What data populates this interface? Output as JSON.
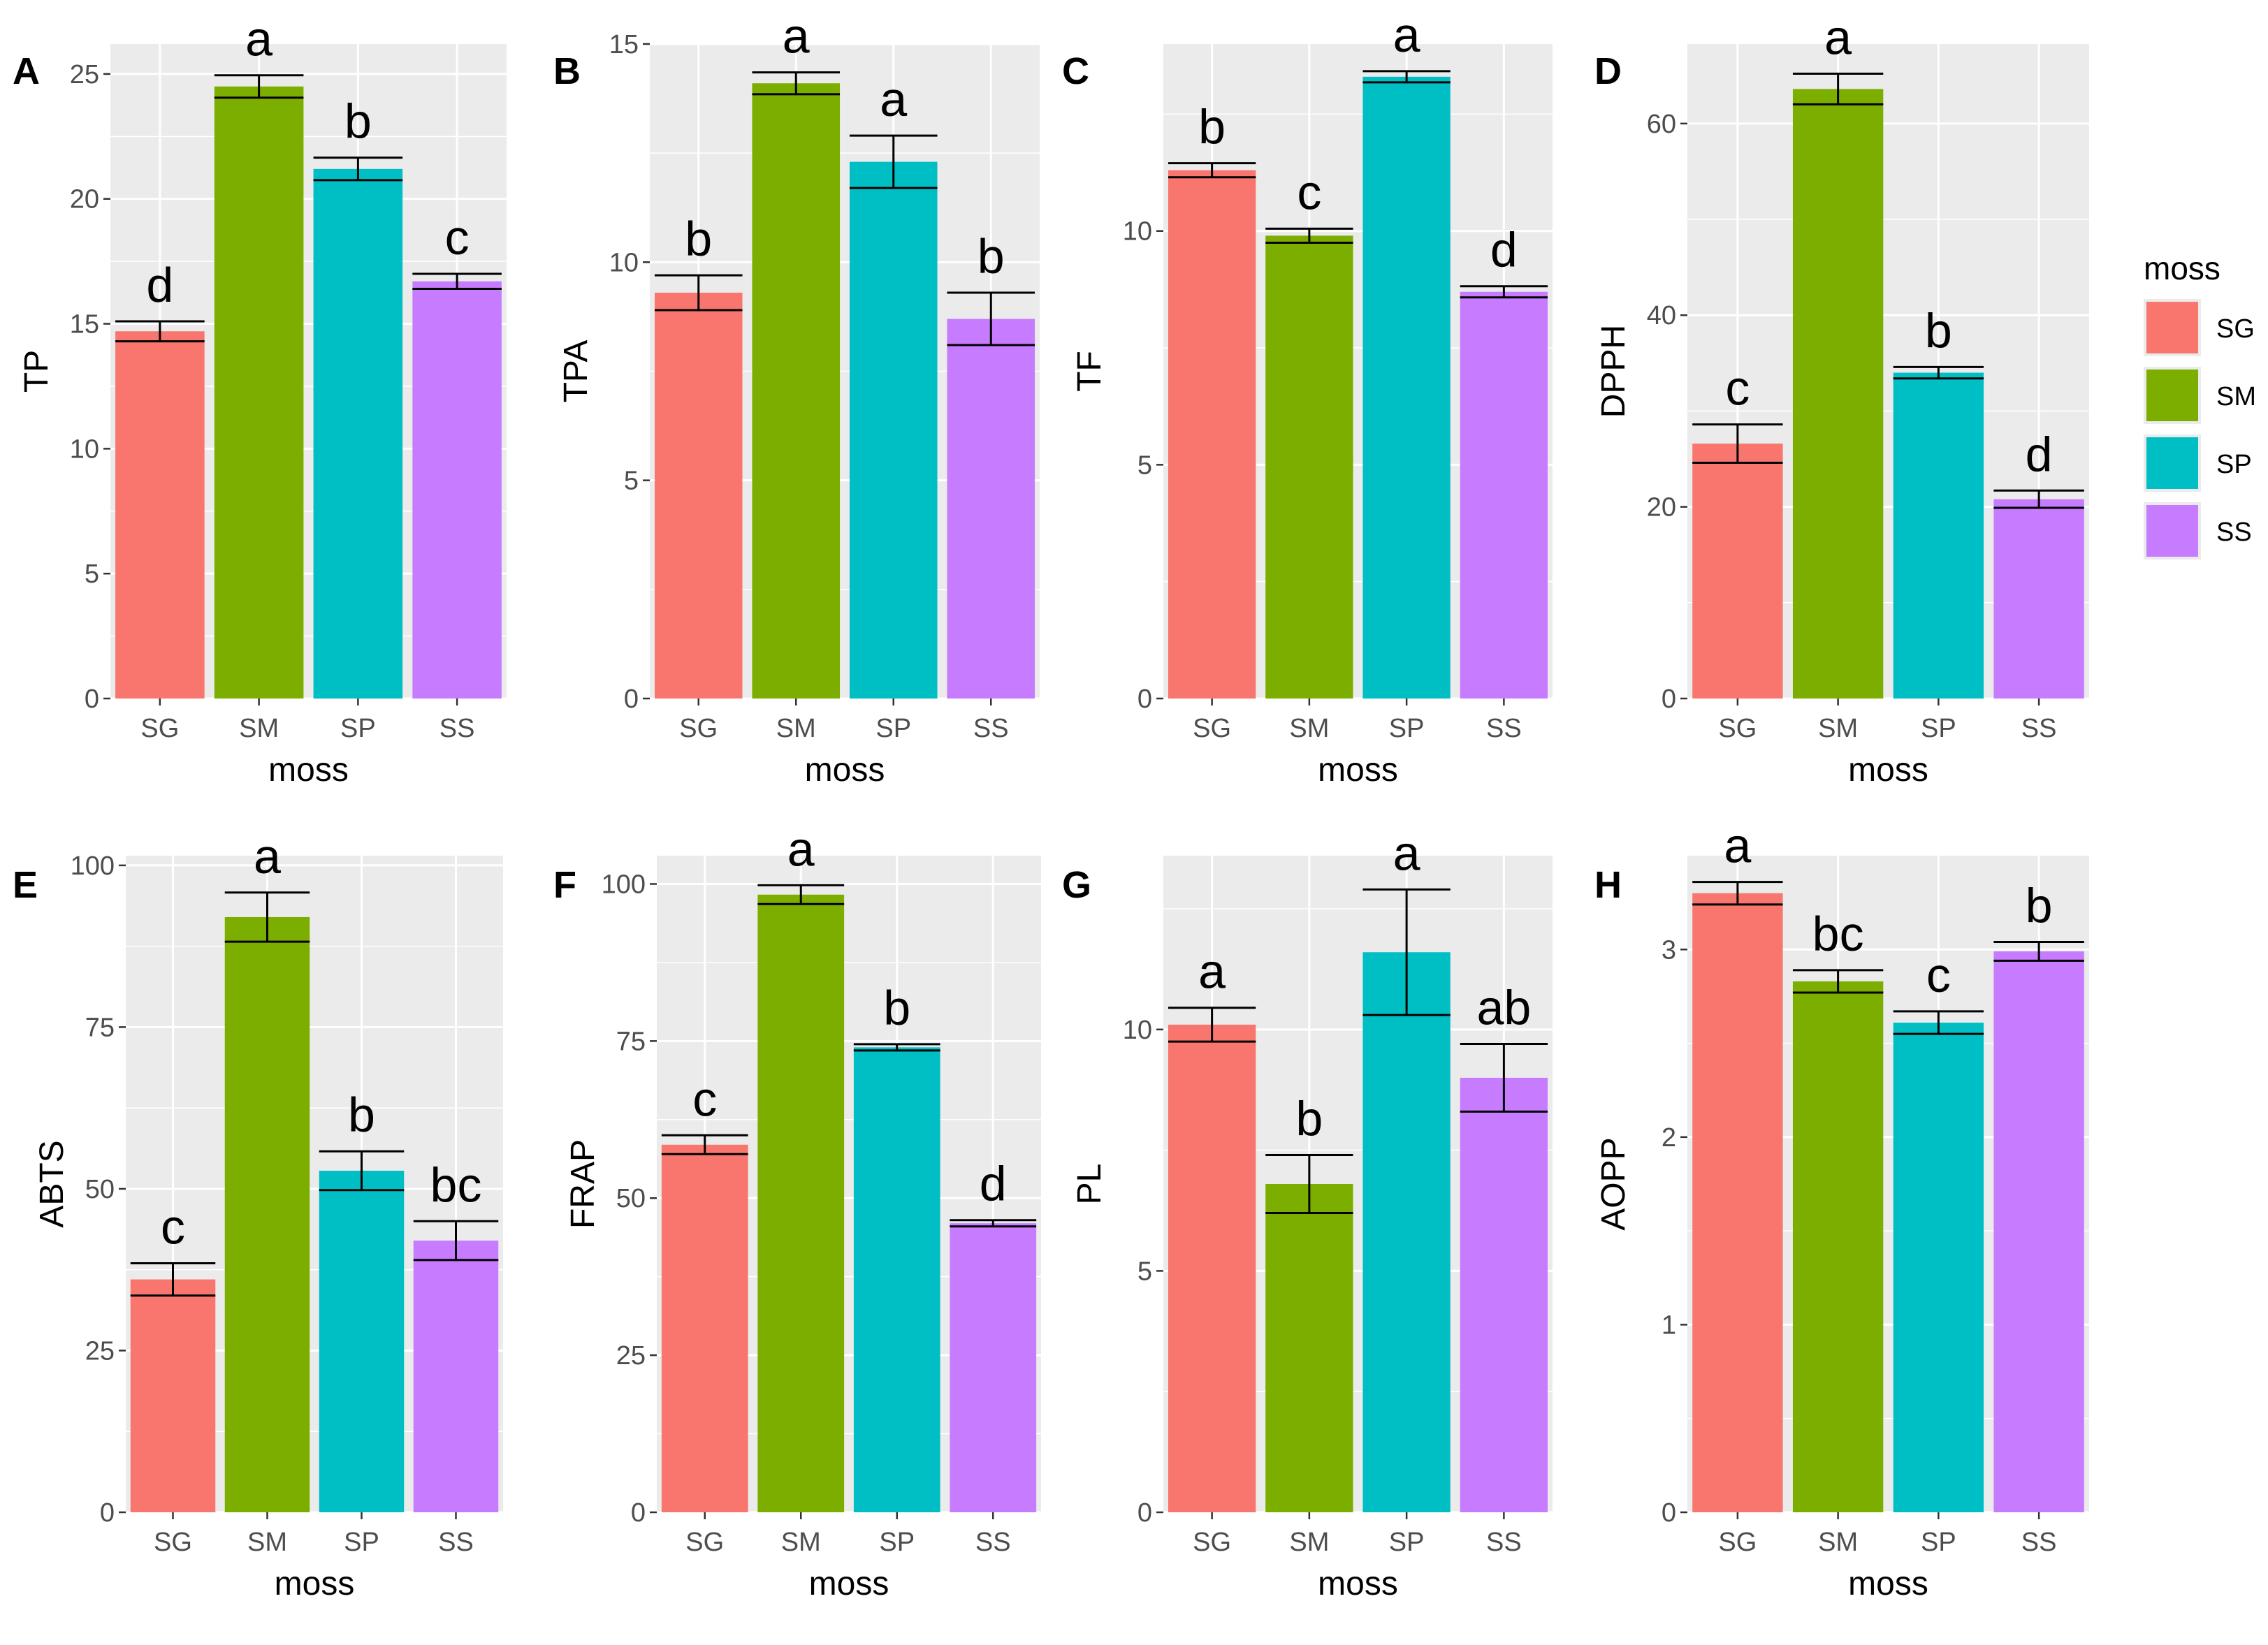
{
  "chart_data": {
    "type": "bar",
    "categories": [
      "SG",
      "SM",
      "SP",
      "SS"
    ],
    "colors": [
      "#F8766D",
      "#7CAE00",
      "#00BFC4",
      "#C77CFF"
    ],
    "legend": {
      "title": "moss",
      "entries": [
        "SG",
        "SM",
        "SP",
        "SS"
      ]
    },
    "panels": [
      {
        "letter": "A",
        "xlabel": "moss",
        "ylabel": "TP",
        "ylim": [
          0,
          26.2
        ],
        "yticks": [
          "0",
          "5",
          "10",
          "15",
          "20",
          "25"
        ],
        "ytick_values": [
          0,
          5,
          10,
          15,
          20,
          25
        ],
        "values": [
          14.7,
          24.5,
          21.2,
          16.7
        ],
        "errors": [
          0.4,
          0.45,
          0.45,
          0.3
        ],
        "sig": [
          "d",
          "a",
          "b",
          "c"
        ]
      },
      {
        "letter": "B",
        "xlabel": "moss",
        "ylabel": "TPA",
        "ylim": [
          0,
          15
        ],
        "yticks": [
          "0",
          "5",
          "10",
          "15"
        ],
        "ytick_values": [
          0,
          5,
          10,
          15
        ],
        "values": [
          9.3,
          14.1,
          12.3,
          8.7
        ],
        "errors": [
          0.4,
          0.25,
          0.6,
          0.6
        ],
        "sig": [
          "b",
          "a",
          "a",
          "b"
        ]
      },
      {
        "letter": "C",
        "xlabel": "moss",
        "ylabel": "TF",
        "ylim": [
          0,
          14.0
        ],
        "yticks": [
          "0",
          "5",
          "10"
        ],
        "ytick_values": [
          0,
          5,
          10
        ],
        "values": [
          11.3,
          9.9,
          13.3,
          8.7
        ],
        "errors": [
          0.15,
          0.15,
          0.12,
          0.12
        ],
        "sig": [
          "b",
          "c",
          "a",
          "d"
        ]
      },
      {
        "letter": "D",
        "xlabel": "moss",
        "ylabel": "DPPH",
        "ylim": [
          0,
          68.3
        ],
        "yticks": [
          "0",
          "20",
          "40",
          "60"
        ],
        "ytick_values": [
          0,
          20,
          40,
          60
        ],
        "values": [
          26.6,
          63.6,
          34.0,
          20.8
        ],
        "errors": [
          2.0,
          1.6,
          0.6,
          0.9
        ],
        "sig": [
          "c",
          "a",
          "b",
          "d"
        ]
      },
      {
        "letter": "E",
        "xlabel": "moss",
        "ylabel": "ABTS",
        "ylim": [
          0,
          101.5
        ],
        "yticks": [
          "0",
          "25",
          "50",
          "75",
          "100"
        ],
        "ytick_values": [
          0,
          25,
          50,
          75,
          100
        ],
        "values": [
          36.0,
          92.0,
          52.8,
          42.0
        ],
        "errors": [
          2.5,
          3.8,
          3.0,
          3.0
        ],
        "sig": [
          "c",
          "a",
          "b",
          "bc"
        ]
      },
      {
        "letter": "F",
        "xlabel": "moss",
        "ylabel": "FRAP",
        "ylim": [
          0,
          104.5
        ],
        "yticks": [
          "0",
          "25",
          "50",
          "75",
          "100"
        ],
        "ytick_values": [
          0,
          25,
          50,
          75,
          100
        ],
        "values": [
          58.5,
          98.3,
          74.0,
          46.0
        ],
        "errors": [
          1.5,
          1.5,
          0.5,
          0.5
        ],
        "sig": [
          "c",
          "a",
          "b",
          "d"
        ]
      },
      {
        "letter": "G",
        "xlabel": "moss",
        "ylabel": "PL",
        "ylim": [
          0,
          13.6
        ],
        "yticks": [
          "0",
          "5",
          "10"
        ],
        "ytick_values": [
          0,
          5,
          10
        ],
        "values": [
          10.1,
          6.8,
          11.6,
          9.0
        ],
        "errors": [
          0.35,
          0.6,
          1.3,
          0.7
        ],
        "sig": [
          "a",
          "b",
          "a",
          "ab"
        ]
      },
      {
        "letter": "H",
        "xlabel": "moss",
        "ylabel": "AOPP",
        "ylim": [
          0,
          3.5
        ],
        "yticks": [
          "0",
          "1",
          "2",
          "3"
        ],
        "ytick_values": [
          0,
          1,
          2,
          3
        ],
        "values": [
          3.3,
          2.83,
          2.61,
          2.99
        ],
        "errors": [
          0.06,
          0.06,
          0.06,
          0.05
        ],
        "sig": [
          "a",
          "bc",
          "c",
          "b"
        ]
      }
    ]
  }
}
